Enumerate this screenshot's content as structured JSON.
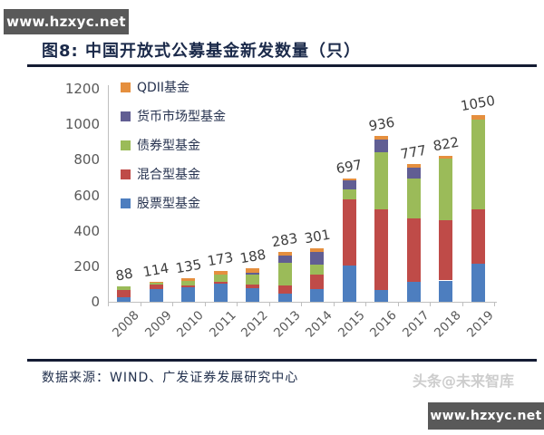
{
  "banner": {
    "text": "www.hzxyc.net",
    "bg_color": "#595959"
  },
  "figure": {
    "title": "图8:  中国开放式公募基金新发数量（只）",
    "title_color": "#1b2a4a",
    "source": "数据来源：WIND、广发证券发展研究中心",
    "corner_watermark": "头条@未来智库"
  },
  "chart_data": {
    "type": "bar",
    "stacked": true,
    "title": "中国开放式公募基金新发数量（只）",
    "categories": [
      "2008",
      "2009",
      "2010",
      "2011",
      "2012",
      "2013",
      "2014",
      "2015",
      "2016",
      "2017",
      "2018",
      "2019"
    ],
    "series": [
      {
        "name": "股票型基金",
        "color": "#4d7ebf",
        "values": [
          26,
          70,
          82,
          100,
          78,
          48,
          74,
          205,
          65,
          112,
          120,
          212
        ]
      },
      {
        "name": "混合型基金",
        "color": "#bf4b48",
        "values": [
          38,
          26,
          12,
          14,
          18,
          42,
          79,
          372,
          455,
          358,
          342,
          310
        ]
      },
      {
        "name": "债券型基金",
        "color": "#9bbb59",
        "values": [
          24,
          10,
          26,
          38,
          57,
          128,
          56,
          55,
          322,
          224,
          343,
          502
        ]
      },
      {
        "name": "货币市场型基金",
        "color": "#615e93",
        "values": [
          0,
          0,
          0,
          0,
          10,
          42,
          74,
          52,
          74,
          64,
          0,
          0
        ]
      },
      {
        "name": "QDII基金",
        "color": "#e58f3e",
        "values": [
          0,
          8,
          15,
          21,
          25,
          23,
          18,
          13,
          20,
          19,
          17,
          26
        ]
      }
    ],
    "totals": [
      88,
      114,
      135,
      173,
      188,
      283,
      301,
      697,
      936,
      777,
      822,
      1050
    ],
    "ylim": [
      0,
      1200
    ],
    "yticks": [
      0,
      200,
      400,
      600,
      800,
      1000,
      1200
    ],
    "legend_order_top_to_bottom": [
      "QDII基金",
      "货币市场型基金",
      "债券型基金",
      "混合型基金",
      "股票型基金"
    ],
    "legend_position": "top-left-inside",
    "grid": false,
    "x_label_rotation_deg": -45
  }
}
